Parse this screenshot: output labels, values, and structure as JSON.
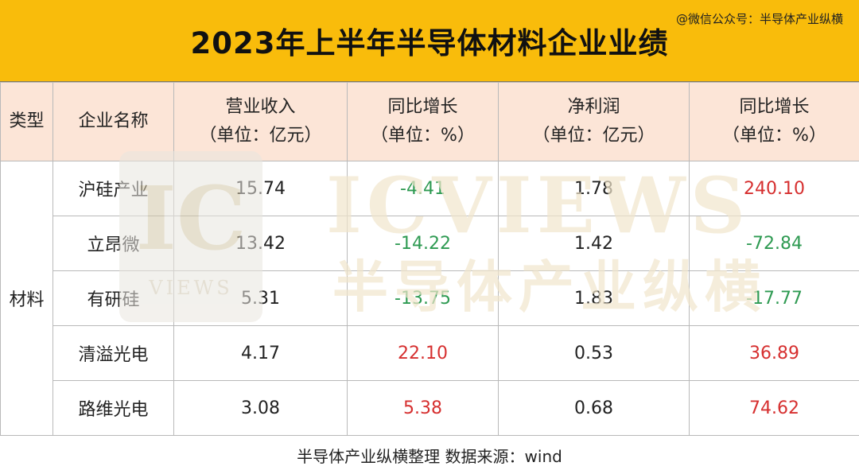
{
  "title": "2023年上半年半导体材料企业业绩",
  "credit": "@微信公众号：半导体产业纵横",
  "headers": {
    "type": "类型",
    "company": "企业名称",
    "revenue": [
      "营业收入",
      "（单位：亿元）"
    ],
    "revenue_yoy": [
      "同比增长",
      "（单位：%）"
    ],
    "profit": [
      "净利润",
      "（单位：亿元）"
    ],
    "profit_yoy": [
      "同比增长",
      "（单位：%）"
    ]
  },
  "category": "材料",
  "rows": [
    {
      "company": "沪硅产业",
      "revenue": "15.74",
      "revenue_yoy": "-4.41",
      "profit": "1.78",
      "profit_yoy": "240.10"
    },
    {
      "company": "立昂微",
      "revenue": "13.42",
      "revenue_yoy": "-14.22",
      "profit": "1.42",
      "profit_yoy": "-72.84"
    },
    {
      "company": "有研硅",
      "revenue": "5.31",
      "revenue_yoy": "-13.75",
      "profit": "1.83",
      "profit_yoy": "-17.77"
    },
    {
      "company": "清溢光电",
      "revenue": "4.17",
      "revenue_yoy": "22.10",
      "profit": "0.53",
      "profit_yoy": "36.89"
    },
    {
      "company": "路维光电",
      "revenue": "3.08",
      "revenue_yoy": "5.38",
      "profit": "0.68",
      "profit_yoy": "74.62"
    }
  ],
  "footer": "半导体产业纵横整理  数据来源：wind",
  "watermark": {
    "logo_big": "IC",
    "logo_small": "VIEWS",
    "brand": "ICVIEWS",
    "brand_cn": "半导体产业纵横"
  },
  "colors": {
    "title_bg": "#f9bc0b",
    "header_bg": "#fce5d7",
    "negative": "#2e9a52",
    "positive": "#d62f2f"
  }
}
